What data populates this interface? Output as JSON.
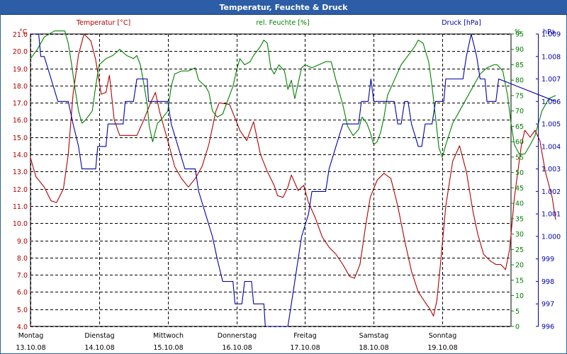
{
  "window": {
    "title": "Temperatur, Feuchte & Druck"
  },
  "chart_data": {
    "type": "line",
    "title": "Temperatur, Feuchte & Druck",
    "colors": {
      "temperature": "#b00000",
      "humidity": "#008000",
      "pressure": "#0000a8",
      "grid": "#000000",
      "title_bg": "#2c5da6"
    },
    "axes": {
      "temperature": {
        "label": "Temperatur [°C]",
        "unit": "°C",
        "ylim": [
          4.0,
          21.0
        ],
        "ticks": [
          "21.0",
          "20.0",
          "19.0",
          "18.0",
          "17.0",
          "16.0",
          "15.0",
          "14.0",
          "13.0",
          "12.0",
          "11.0",
          "10.0",
          "9.0",
          "8.0",
          "7.0",
          "6.0",
          "5.0",
          "4.0"
        ]
      },
      "humidity": {
        "label": "rel. Feuchte [%]",
        "unit": "%",
        "ylim": [
          0,
          95
        ],
        "ticks": [
          "95",
          "90",
          "85",
          "80",
          "75",
          "70",
          "65",
          "60",
          "55",
          "50",
          "45",
          "40",
          "35",
          "30",
          "25",
          "20",
          "15",
          "10",
          "5",
          "0"
        ]
      },
      "pressure": {
        "label": "Druck [hPa]",
        "unit": "hPa",
        "ylim": [
          996,
          1009
        ],
        "ticks": [
          "1.009",
          "1.008",
          "1.007",
          "1.006",
          "1.005",
          "1.004",
          "1.003",
          "1.002",
          "1.001",
          "1.000",
          "999",
          "998",
          "997",
          "996"
        ]
      }
    },
    "x_range_days": [
      0,
      7
    ],
    "days": [
      {
        "name": "Montag",
        "date": "13.10.08"
      },
      {
        "name": "Dienstag",
        "date": "14.10.08"
      },
      {
        "name": "Mittwoch",
        "date": "15.10.08"
      },
      {
        "name": "Donnerstag",
        "date": "16.10.08"
      },
      {
        "name": "Freitag",
        "date": "17.10.08"
      },
      {
        "name": "Samstag",
        "date": "18.10.08"
      },
      {
        "name": "Sonntag",
        "date": "19.10.08"
      }
    ],
    "series": [
      {
        "name": "Temperatur",
        "axis": "temperature",
        "color": "#b00000",
        "points": [
          [
            0,
            13.8
          ],
          [
            0.08,
            12.7
          ],
          [
            0.2,
            12.1
          ],
          [
            0.3,
            11.3
          ],
          [
            0.38,
            11.2
          ],
          [
            0.48,
            12.0
          ],
          [
            0.55,
            14.0
          ],
          [
            0.62,
            17.5
          ],
          [
            0.7,
            19.8
          ],
          [
            0.78,
            21.0
          ],
          [
            0.88,
            20.6
          ],
          [
            0.95,
            19.5
          ],
          [
            1.03,
            17.5
          ],
          [
            1.1,
            17.6
          ],
          [
            1.15,
            18.6
          ],
          [
            1.22,
            16.0
          ],
          [
            1.3,
            15.1
          ],
          [
            1.45,
            15.1
          ],
          [
            1.55,
            15.1
          ],
          [
            1.65,
            16.0
          ],
          [
            1.75,
            17.0
          ],
          [
            1.82,
            17.6
          ],
          [
            1.88,
            16.5
          ],
          [
            1.95,
            15.5
          ],
          [
            2.02,
            14.5
          ],
          [
            2.1,
            13.3
          ],
          [
            2.2,
            12.6
          ],
          [
            2.3,
            12.1
          ],
          [
            2.4,
            12.6
          ],
          [
            2.5,
            13.3
          ],
          [
            2.6,
            14.6
          ],
          [
            2.7,
            16.5
          ],
          [
            2.75,
            17.0
          ],
          [
            2.9,
            16.9
          ],
          [
            3.05,
            15.4
          ],
          [
            3.15,
            14.8
          ],
          [
            3.25,
            15.9
          ],
          [
            3.35,
            14.0
          ],
          [
            3.45,
            13.0
          ],
          [
            3.55,
            12.2
          ],
          [
            3.6,
            11.6
          ],
          [
            3.68,
            11.5
          ],
          [
            3.75,
            12.1
          ],
          [
            3.8,
            12.8
          ],
          [
            3.9,
            11.9
          ],
          [
            3.98,
            12.2
          ],
          [
            4.05,
            11.2
          ],
          [
            4.15,
            10.3
          ],
          [
            4.25,
            9.2
          ],
          [
            4.35,
            8.6
          ],
          [
            4.45,
            8.2
          ],
          [
            4.55,
            7.6
          ],
          [
            4.65,
            6.9
          ],
          [
            4.72,
            6.8
          ],
          [
            4.8,
            7.6
          ],
          [
            4.88,
            9.8
          ],
          [
            4.95,
            11.5
          ],
          [
            5.05,
            12.5
          ],
          [
            5.15,
            12.9
          ],
          [
            5.25,
            12.6
          ],
          [
            5.35,
            11.0
          ],
          [
            5.45,
            9.0
          ],
          [
            5.55,
            7.2
          ],
          [
            5.65,
            6.0
          ],
          [
            5.75,
            5.4
          ],
          [
            5.82,
            5.0
          ],
          [
            5.87,
            4.6
          ],
          [
            5.92,
            5.5
          ],
          [
            5.97,
            7.5
          ],
          [
            6.05,
            11.0
          ],
          [
            6.15,
            13.6
          ],
          [
            6.25,
            14.5
          ],
          [
            6.35,
            13.0
          ],
          [
            6.45,
            10.6
          ],
          [
            6.52,
            9.3
          ],
          [
            6.6,
            8.2
          ],
          [
            6.7,
            7.8
          ],
          [
            6.78,
            7.6
          ],
          [
            6.85,
            7.6
          ],
          [
            6.92,
            7.3
          ],
          [
            6.98,
            8.5
          ],
          [
            7.05,
            11.5
          ],
          [
            7.15,
            14.5
          ],
          [
            7.2,
            15.4
          ],
          [
            7.28,
            15.0
          ],
          [
            7.35,
            15.4
          ],
          [
            7.42,
            14.8
          ],
          [
            7.5,
            13.0
          ],
          [
            7.6,
            11.5
          ],
          [
            7.65,
            10.2
          ]
        ]
      },
      {
        "name": "rel. Feuchte",
        "axis": "humidity",
        "color": "#008000",
        "points": [
          [
            0,
            87
          ],
          [
            0.1,
            90
          ],
          [
            0.2,
            94
          ],
          [
            0.35,
            96
          ],
          [
            0.5,
            96
          ],
          [
            0.55,
            92
          ],
          [
            0.6,
            85
          ],
          [
            0.65,
            77
          ],
          [
            0.7,
            70
          ],
          [
            0.75,
            66
          ],
          [
            0.8,
            67
          ],
          [
            0.9,
            70
          ],
          [
            0.95,
            78
          ],
          [
            1.0,
            85
          ],
          [
            1.1,
            87
          ],
          [
            1.2,
            88
          ],
          [
            1.3,
            90
          ],
          [
            1.4,
            88
          ],
          [
            1.5,
            87
          ],
          [
            1.55,
            88
          ],
          [
            1.6,
            85
          ],
          [
            1.65,
            79
          ],
          [
            1.7,
            72
          ],
          [
            1.73,
            65
          ],
          [
            1.78,
            60
          ],
          [
            1.85,
            66
          ],
          [
            1.9,
            67
          ],
          [
            2.0,
            70
          ],
          [
            2.05,
            78
          ],
          [
            2.1,
            82
          ],
          [
            2.2,
            83
          ],
          [
            2.3,
            83
          ],
          [
            2.4,
            84
          ],
          [
            2.45,
            80
          ],
          [
            2.5,
            79
          ],
          [
            2.55,
            78
          ],
          [
            2.6,
            76
          ],
          [
            2.65,
            70
          ],
          [
            2.72,
            68
          ],
          [
            2.8,
            69
          ],
          [
            2.85,
            72
          ],
          [
            2.95,
            78
          ],
          [
            3.0,
            83
          ],
          [
            3.05,
            87
          ],
          [
            3.12,
            85
          ],
          [
            3.2,
            86
          ],
          [
            3.25,
            88
          ],
          [
            3.35,
            91
          ],
          [
            3.4,
            93
          ],
          [
            3.45,
            92
          ],
          [
            3.5,
            84
          ],
          [
            3.55,
            82
          ],
          [
            3.62,
            85
          ],
          [
            3.7,
            83
          ],
          [
            3.75,
            77
          ],
          [
            3.8,
            80
          ],
          [
            3.85,
            74
          ],
          [
            3.9,
            79
          ],
          [
            3.95,
            84
          ],
          [
            4.0,
            85
          ],
          [
            4.1,
            84
          ],
          [
            4.2,
            85
          ],
          [
            4.3,
            86
          ],
          [
            4.38,
            86
          ],
          [
            4.45,
            80
          ],
          [
            4.55,
            72
          ],
          [
            4.62,
            65
          ],
          [
            4.7,
            62
          ],
          [
            4.78,
            64
          ],
          [
            4.83,
            68
          ],
          [
            4.9,
            66
          ],
          [
            4.95,
            63
          ],
          [
            5.0,
            59
          ],
          [
            5.05,
            60
          ],
          [
            5.1,
            63
          ],
          [
            5.15,
            68
          ],
          [
            5.2,
            75
          ],
          [
            5.3,
            80
          ],
          [
            5.4,
            85
          ],
          [
            5.5,
            88
          ],
          [
            5.6,
            91
          ],
          [
            5.65,
            93
          ],
          [
            5.72,
            92
          ],
          [
            5.8,
            86
          ],
          [
            5.85,
            78
          ],
          [
            5.9,
            68
          ],
          [
            5.95,
            58
          ],
          [
            6.0,
            55
          ],
          [
            6.05,
            59
          ],
          [
            6.15,
            66
          ],
          [
            6.25,
            70
          ],
          [
            6.35,
            74
          ],
          [
            6.45,
            78
          ],
          [
            6.55,
            82
          ],
          [
            6.65,
            84
          ],
          [
            6.75,
            85
          ],
          [
            6.8,
            85
          ],
          [
            6.88,
            83
          ],
          [
            6.95,
            75
          ],
          [
            7.0,
            66
          ],
          [
            7.05,
            59
          ],
          [
            7.12,
            56
          ],
          [
            7.2,
            56
          ],
          [
            7.28,
            59
          ],
          [
            7.35,
            62
          ],
          [
            7.45,
            70
          ],
          [
            7.55,
            74
          ],
          [
            7.65,
            75
          ]
        ]
      },
      {
        "name": "Druck",
        "axis": "pressure",
        "color": "#0000a8",
        "points": [
          [
            0,
            1009
          ],
          [
            0.12,
            1009
          ],
          [
            0.15,
            1008
          ],
          [
            0.2,
            1008
          ],
          [
            0.3,
            1007
          ],
          [
            0.4,
            1006
          ],
          [
            0.55,
            1006
          ],
          [
            0.62,
            1005
          ],
          [
            0.7,
            1004
          ],
          [
            0.75,
            1003
          ],
          [
            0.95,
            1003
          ],
          [
            0.98,
            1004
          ],
          [
            1.1,
            1004
          ],
          [
            1.13,
            1005
          ],
          [
            1.35,
            1005
          ],
          [
            1.38,
            1006
          ],
          [
            1.5,
            1006
          ],
          [
            1.55,
            1007
          ],
          [
            1.7,
            1007
          ],
          [
            1.72,
            1006
          ],
          [
            2.0,
            1006
          ],
          [
            2.05,
            1005
          ],
          [
            2.15,
            1004
          ],
          [
            2.25,
            1003
          ],
          [
            2.4,
            1003
          ],
          [
            2.45,
            1002
          ],
          [
            2.55,
            1001
          ],
          [
            2.65,
            1000
          ],
          [
            2.72,
            999
          ],
          [
            2.8,
            998
          ],
          [
            2.95,
            998
          ],
          [
            2.98,
            997
          ],
          [
            3.08,
            997
          ],
          [
            3.12,
            998
          ],
          [
            3.22,
            998
          ],
          [
            3.25,
            997
          ],
          [
            3.4,
            997
          ],
          [
            3.42,
            996
          ],
          [
            3.75,
            996
          ],
          [
            3.8,
            997
          ],
          [
            3.85,
            998
          ],
          [
            3.9,
            999
          ],
          [
            3.95,
            1000
          ],
          [
            4.05,
            1001
          ],
          [
            4.1,
            1002
          ],
          [
            4.3,
            1002
          ],
          [
            4.35,
            1003
          ],
          [
            4.45,
            1004
          ],
          [
            4.55,
            1005
          ],
          [
            4.78,
            1005
          ],
          [
            4.82,
            1006
          ],
          [
            4.92,
            1006
          ],
          [
            4.96,
            1007
          ],
          [
            5.0,
            1006
          ],
          [
            5.3,
            1006
          ],
          [
            5.35,
            1005
          ],
          [
            5.4,
            1005
          ],
          [
            5.45,
            1006
          ],
          [
            5.5,
            1006
          ],
          [
            5.55,
            1005
          ],
          [
            5.65,
            1004
          ],
          [
            5.7,
            1004
          ],
          [
            5.75,
            1005
          ],
          [
            5.85,
            1005
          ],
          [
            5.9,
            1006
          ],
          [
            6.02,
            1006
          ],
          [
            6.05,
            1007
          ],
          [
            6.3,
            1007
          ],
          [
            6.35,
            1008
          ],
          [
            6.42,
            1009
          ],
          [
            6.5,
            1008
          ],
          [
            6.55,
            1007
          ],
          [
            6.62,
            1007
          ],
          [
            6.65,
            1006
          ],
          [
            6.78,
            1006
          ],
          [
            6.82,
            1007
          ],
          [
            7.65,
            1006
          ]
        ]
      }
    ]
  }
}
